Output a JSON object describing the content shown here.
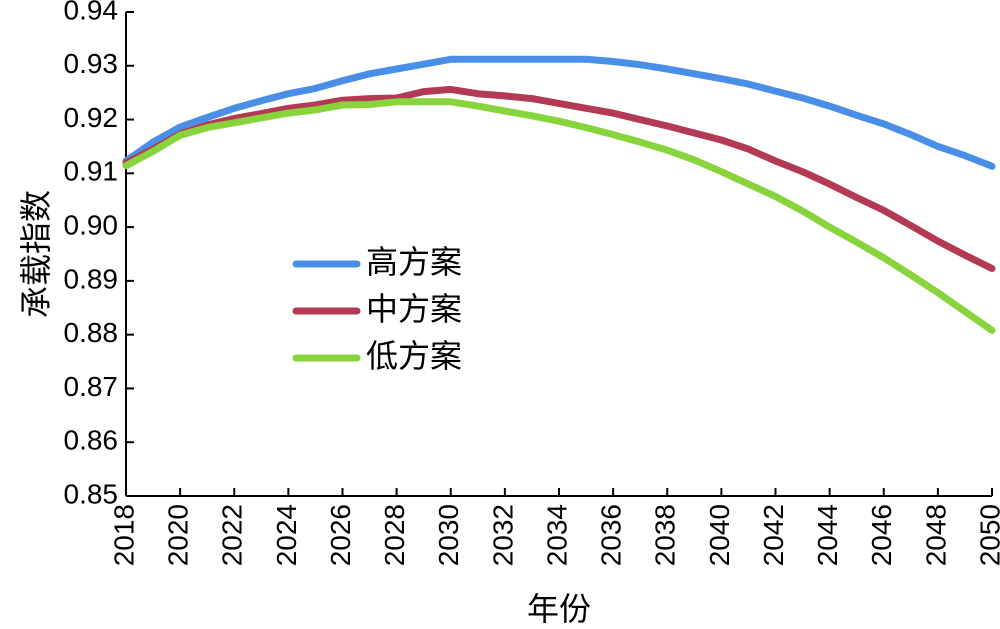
{
  "chart_data": {
    "type": "line",
    "title": "",
    "xlabel": "年份",
    "ylabel": "承载指数",
    "xlim": [
      2018,
      2050
    ],
    "ylim": [
      0.85,
      0.94
    ],
    "x_ticks": [
      "2018",
      "2020",
      "2022",
      "2024",
      "2026",
      "2028",
      "2030",
      "2032",
      "2034",
      "2036",
      "2038",
      "2040",
      "2042",
      "2044",
      "2046",
      "2048",
      "2050"
    ],
    "y_ticks": [
      "0.85",
      "0.86",
      "0.87",
      "0.88",
      "0.89",
      "0.90",
      "0.91",
      "0.92",
      "0.93",
      "0.94"
    ],
    "grid": false,
    "legend_position": "center-left",
    "x": [
      2018,
      2019,
      2020,
      2021,
      2022,
      2023,
      2024,
      2025,
      2026,
      2027,
      2028,
      2029,
      2030,
      2031,
      2032,
      2033,
      2034,
      2035,
      2036,
      2037,
      2038,
      2039,
      2040,
      2041,
      2042,
      2043,
      2044,
      2045,
      2046,
      2047,
      2048,
      2049,
      2050
    ],
    "series": [
      {
        "name": "高方案",
        "color": "#4a8fe7",
        "values": [
          0.9123,
          0.9158,
          0.9186,
          0.9204,
          0.9221,
          0.9235,
          0.9248,
          0.9258,
          0.9272,
          0.9285,
          0.9294,
          0.9303,
          0.9312,
          0.9312,
          0.9312,
          0.9312,
          0.9312,
          0.9312,
          0.9308,
          0.9302,
          0.9294,
          0.9285,
          0.9276,
          0.9266,
          0.9253,
          0.924,
          0.9225,
          0.9208,
          0.9192,
          0.9172,
          0.915,
          0.9133,
          0.9113
        ]
      },
      {
        "name": "中方案",
        "color": "#b23a55",
        "values": [
          0.9119,
          0.9145,
          0.9173,
          0.919,
          0.9202,
          0.9211,
          0.9221,
          0.9227,
          0.9236,
          0.9239,
          0.924,
          0.9252,
          0.9256,
          0.9248,
          0.9244,
          0.9239,
          0.923,
          0.9221,
          0.9212,
          0.92,
          0.9188,
          0.9175,
          0.9162,
          0.9145,
          0.9123,
          0.9103,
          0.908,
          0.9055,
          0.9031,
          0.9003,
          0.8974,
          0.8948,
          0.8923
        ]
      },
      {
        "name": "低方案",
        "color": "#88d43c",
        "values": [
          0.9114,
          0.9141,
          0.9171,
          0.9185,
          0.9194,
          0.9203,
          0.9212,
          0.9218,
          0.9227,
          0.9228,
          0.9233,
          0.9233,
          0.9233,
          0.9225,
          0.9216,
          0.9207,
          0.9197,
          0.9185,
          0.9172,
          0.9158,
          0.9143,
          0.9125,
          0.9103,
          0.908,
          0.9057,
          0.903,
          0.9,
          0.8972,
          0.8943,
          0.8911,
          0.8878,
          0.8843,
          0.8808
        ]
      }
    ]
  }
}
